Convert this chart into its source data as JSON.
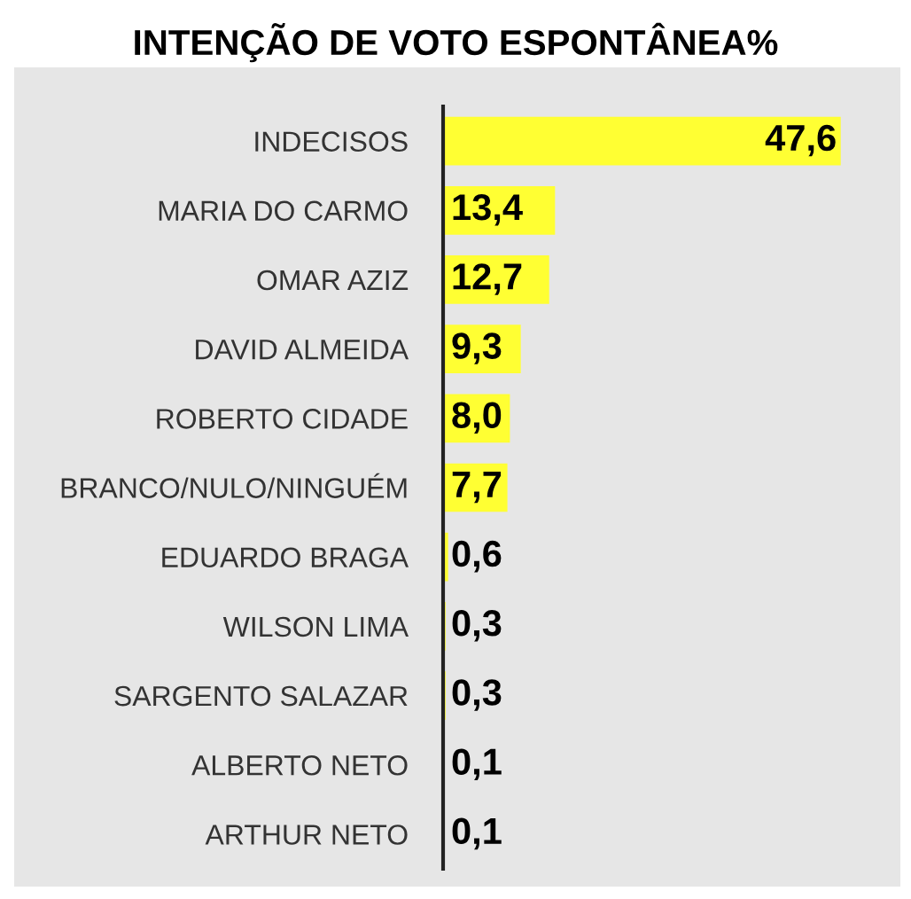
{
  "chart_data": {
    "type": "bar",
    "orientation": "horizontal",
    "title": "INTENÇÃO DE VOTO ESPONTÂNEA%",
    "categories": [
      "INDECISOS",
      "MARIA DO CARMO",
      "OMAR AZIZ",
      "DAVID ALMEIDA",
      "ROBERTO CIDADE",
      "BRANCO/NULO/NINGUÉM",
      "EDUARDO BRAGA",
      "WILSON LIMA",
      "SARGENTO SALAZAR",
      "ALBERTO NETO",
      "ARTHUR NETO"
    ],
    "values": [
      47.6,
      13.4,
      12.7,
      9.3,
      8.0,
      7.7,
      0.6,
      0.3,
      0.3,
      0.1,
      0.1
    ],
    "value_labels": [
      "47,6",
      "13,4",
      "12,7",
      "9,3",
      "8,0",
      "7,7",
      "0,6",
      "0,3",
      "0,3",
      "0,1",
      "0,1"
    ],
    "color": "#ffff33",
    "grid": false,
    "legend": false
  }
}
